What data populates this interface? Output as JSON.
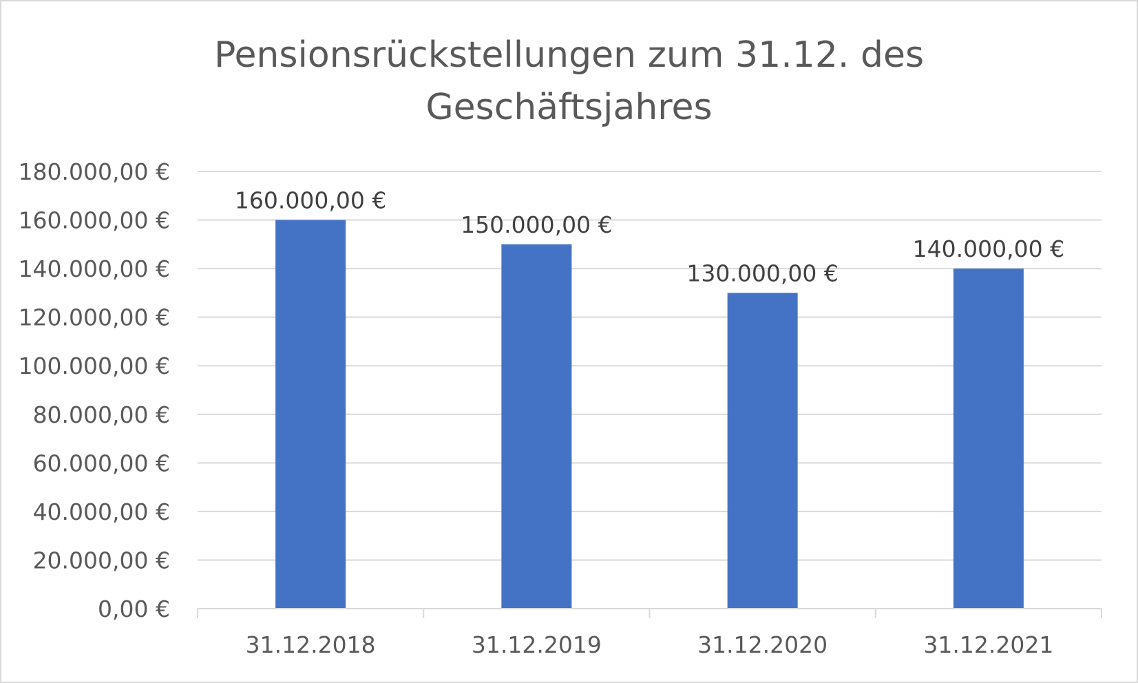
{
  "chart_data": {
    "type": "bar",
    "title_lines": [
      "Pensionsrückstellungen zum 31.12. des",
      "Geschäftsjahres"
    ],
    "categories": [
      "31.12.2018",
      "31.12.2019",
      "31.12.2020",
      "31.12.2021"
    ],
    "values": [
      160000,
      150000,
      130000,
      140000
    ],
    "data_labels": [
      "160.000,00 €",
      "150.000,00 €",
      "130.000,00 €",
      "140.000,00 €"
    ],
    "yticks": [
      0,
      20000,
      40000,
      60000,
      80000,
      100000,
      120000,
      140000,
      160000,
      180000
    ],
    "ytick_labels": [
      "0,00 €",
      "20.000,00 €",
      "40.000,00 €",
      "60.000,00 €",
      "80.000,00 €",
      "100.000,00 €",
      "120.000,00 €",
      "140.000,00 €",
      "160.000,00 €",
      "180.000,00 €"
    ],
    "xlabel": "",
    "ylabel": "",
    "ylim": [
      0,
      180000
    ],
    "grid": true,
    "legend": "none",
    "colors": {
      "bar": "#4472c4",
      "grid": "#d9d9d9",
      "text": "#595959",
      "data_label": "#404040"
    }
  }
}
